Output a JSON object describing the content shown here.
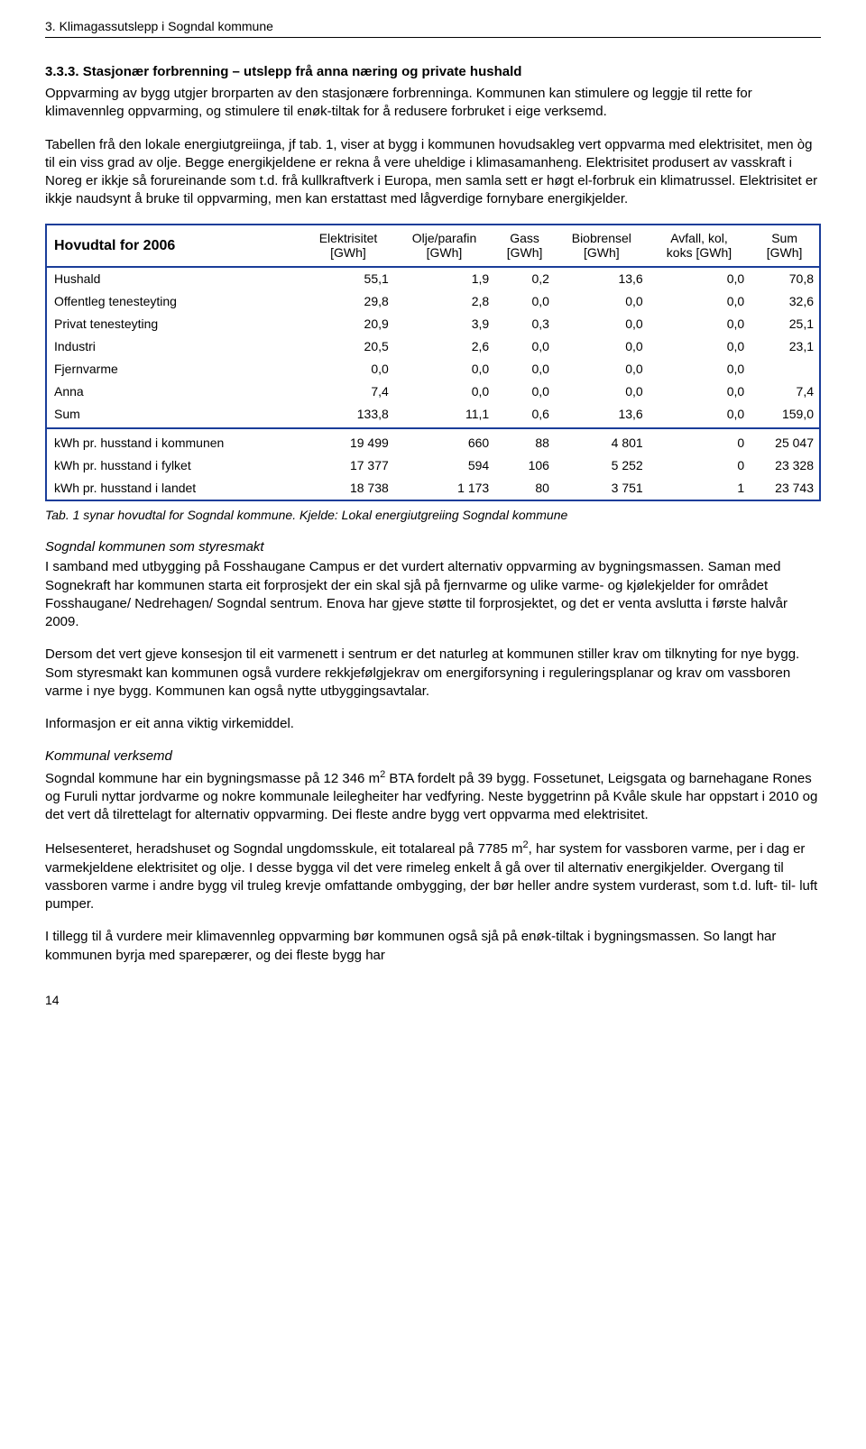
{
  "header": "3. Klimagassutslepp i Sogndal kommune",
  "title_333": "3.3.3. Stasjonær forbrenning – utslepp frå anna næring og private hushald",
  "para1": "Oppvarming av bygg utgjer brorparten av den stasjonære forbrenninga. Kommunen kan stimulere og leggje til rette for klimavennleg oppvarming, og stimulere til enøk-tiltak for å redusere forbruket i eige verksemd.",
  "para2": "Tabellen frå den lokale energiutgreiinga, jf tab. 1, viser at bygg i kommunen hovudsakleg vert oppvarma med elektrisitet, men òg til ein viss grad av olje. Begge energikjeldene er rekna å vere uheldige i klimasamanheng. Elektrisitet produsert av vasskraft i Noreg er ikkje så forureinande som t.d. frå kullkraftverk i Europa, men samla sett er høgt el-forbruk ein klimatrussel. Elektrisitet er ikkje naudsynt å bruke til oppvarming, men kan erstattast med lågverdige fornybare energikjelder.",
  "table": {
    "title": "Hovudtal for 2006",
    "columns": [
      {
        "l1": "Elektrisitet",
        "l2": "[GWh]"
      },
      {
        "l1": "Olje/parafin",
        "l2": "[GWh]"
      },
      {
        "l1": "Gass",
        "l2": "[GWh]"
      },
      {
        "l1": "Biobrensel",
        "l2": "[GWh]"
      },
      {
        "l1": "Avfall, kol,",
        "l2": "koks [GWh]"
      },
      {
        "l1": "Sum",
        "l2": "[GWh]"
      }
    ],
    "rows1": [
      {
        "label": "Hushald",
        "v": [
          "55,1",
          "1,9",
          "0,2",
          "13,6",
          "0,0",
          "70,8"
        ]
      },
      {
        "label": "Offentleg tenesteyting",
        "v": [
          "29,8",
          "2,8",
          "0,0",
          "0,0",
          "0,0",
          "32,6"
        ]
      },
      {
        "label": "Privat tenesteyting",
        "v": [
          "20,9",
          "3,9",
          "0,3",
          "0,0",
          "0,0",
          "25,1"
        ]
      },
      {
        "label": "Industri",
        "v": [
          "20,5",
          "2,6",
          "0,0",
          "0,0",
          "0,0",
          "23,1"
        ]
      },
      {
        "label": "Fjernvarme",
        "v": [
          "0,0",
          "0,0",
          "0,0",
          "0,0",
          "0,0",
          ""
        ]
      },
      {
        "label": "Anna",
        "v": [
          "7,4",
          "0,0",
          "0,0",
          "0,0",
          "0,0",
          "7,4"
        ]
      },
      {
        "label": "Sum",
        "v": [
          "133,8",
          "11,1",
          "0,6",
          "13,6",
          "0,0",
          "159,0"
        ]
      }
    ],
    "rows2": [
      {
        "label": "kWh pr. husstand i kommunen",
        "v": [
          "19 499",
          "660",
          "88",
          "4 801",
          "0",
          "25 047"
        ]
      },
      {
        "label": "kWh pr. husstand i fylket",
        "v": [
          "17 377",
          "594",
          "106",
          "5 252",
          "0",
          "23 328"
        ]
      },
      {
        "label": "kWh pr. husstand i landet",
        "v": [
          "18 738",
          "1 173",
          "80",
          "3 751",
          "1",
          "23 743"
        ]
      }
    ]
  },
  "caption": "Tab. 1 synar hovudtal for Sogndal kommune. Kjelde: Lokal energiutgreiing Sogndal kommune",
  "subhead_styresmakt": "Sogndal kommunen som styresmakt",
  "para_styresmakt": "I samband med utbygging på Fosshaugane Campus er det vurdert alternativ oppvarming av bygningsmassen. Saman med Sognekraft har kommunen starta eit forprosjekt der ein skal sjå på fjernvarme og ulike varme- og kjølekjelder for området Fosshaugane/ Nedrehagen/ Sogndal sentrum. Enova har gjeve støtte til forprosjektet, og det er venta avslutta i første halvår 2009.",
  "para_konsesjon": "Dersom det vert gjeve konsesjon til eit varmenett i sentrum er det naturleg at kommunen stiller krav om tilknyting for nye bygg. Som styresmakt kan kommunen også vurdere rekkjefølgjekrav om energiforsyning i reguleringsplanar og krav om vassboren varme i nye bygg. Kommunen kan også nytte utbyggingsavtalar.",
  "para_info": "Informasjon er eit anna viktig virkemiddel.",
  "subhead_kommunal": "Kommunal verksemd",
  "para_kommunal_a": "Sogndal kommune har ein bygningsmasse på 12 346 m",
  "para_kommunal_b": " BTA fordelt på 39 bygg. Fossetunet, Leigsgata og barnehagane Rones og Furuli nyttar jordvarme og nokre kommunale leilegheiter har vedfyring. Neste byggetrinn på Kvåle skule har oppstart i 2010 og det vert då tilrettelagt for alternativ oppvarming. Dei fleste andre bygg vert oppvarma med elektrisitet.",
  "para_helse_a": "Helsesenteret, heradshuset og Sogndal ungdomsskule, eit totalareal på 7785 m",
  "para_helse_b": ", har system for vassboren varme, per i dag er varmekjeldene elektrisitet og olje. I desse bygga vil det vere rimeleg enkelt å gå over til alternativ energikjelder. Overgang til vassboren varme i andre bygg vil truleg krevje omfattande ombygging, der bør heller andre system vurderast, som t.d. luft- til- luft pumper.",
  "para_tillegg": "I tillegg til å vurdere meir klimavennleg oppvarming bør kommunen også sjå på enøk-tiltak i bygningsmassen. So langt har kommunen byrja med sparepærer, og dei fleste bygg har",
  "page": "14"
}
